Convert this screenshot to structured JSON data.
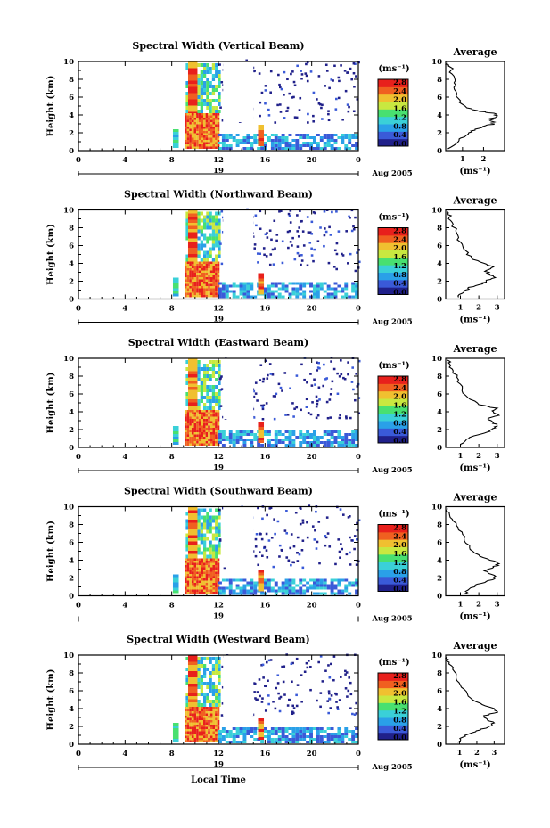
{
  "chart_data": {
    "type": "heatmap",
    "colorbar_unit": "(ms⁻¹)",
    "colorbar_ticks": [
      "0.0",
      "0.4",
      "0.8",
      "1.2",
      "1.6",
      "2.0",
      "2.4",
      "2.8"
    ],
    "colorscale": [
      "#20208a",
      "#3a5ad8",
      "#2aa0e8",
      "#3ad0d8",
      "#48e070",
      "#c8e840",
      "#f0c030",
      "#f06020",
      "#e8201c"
    ],
    "x_ticks": [
      "0",
      "4",
      "8",
      "12",
      "16",
      "20",
      "0"
    ],
    "y_ticks": [
      "0",
      "2",
      "4",
      "6",
      "8",
      "10"
    ],
    "xlim": [
      0,
      24
    ],
    "ylim": [
      0,
      10
    ],
    "ylabel": "Height (km)",
    "date_day": "19",
    "date_label": "Aug 2005",
    "xlabel": "Local Time",
    "avg_title": "Average",
    "avg_xlabel": "(ms⁻¹)",
    "panels": [
      {
        "title": "Spectral Width (Vertical Beam)",
        "avg_ticks": [
          "1",
          "2"
        ],
        "avg_xlim": [
          0.2,
          3.0
        ],
        "avg_profile": [
          [
            0.3,
            0.2
          ],
          [
            0.8,
            1.0
          ],
          [
            0.9,
            1.4
          ],
          [
            1.3,
            2.0
          ],
          [
            1.6,
            2.4
          ],
          [
            2.1,
            2.8
          ],
          [
            2.5,
            3.0
          ],
          [
            2.3,
            3.4
          ],
          [
            2.6,
            3.8
          ],
          [
            2.5,
            4.2
          ],
          [
            1.8,
            4.4
          ],
          [
            1.2,
            4.8
          ],
          [
            0.9,
            5.6
          ],
          [
            0.7,
            6.6
          ],
          [
            0.6,
            7.6
          ],
          [
            0.5,
            8.6
          ],
          [
            0.4,
            9.4
          ],
          [
            0.3,
            9.8
          ]
        ]
      },
      {
        "title": "Spectral Width (Northward Beam)",
        "avg_ticks": [
          "1",
          "2",
          "3"
        ],
        "avg_xlim": [
          0.2,
          3.4
        ],
        "avg_profile": [
          [
            0.9,
            0.2
          ],
          [
            1.2,
            0.8
          ],
          [
            1.4,
            1.2
          ],
          [
            2.0,
            1.6
          ],
          [
            2.4,
            2.0
          ],
          [
            2.9,
            2.4
          ],
          [
            2.6,
            2.8
          ],
          [
            2.4,
            3.2
          ],
          [
            2.8,
            3.6
          ],
          [
            2.3,
            4.0
          ],
          [
            1.6,
            4.6
          ],
          [
            1.3,
            5.4
          ],
          [
            1.0,
            6.4
          ],
          [
            0.8,
            7.4
          ],
          [
            0.6,
            8.4
          ],
          [
            0.4,
            9.2
          ],
          [
            0.3,
            9.8
          ]
        ]
      },
      {
        "title": "Spectral Width (Eastward Beam)",
        "avg_ticks": [
          "1",
          "2",
          "3"
        ],
        "avg_xlim": [
          0.2,
          3.4
        ],
        "avg_profile": [
          [
            1.0,
            0.2
          ],
          [
            1.3,
            0.8
          ],
          [
            1.6,
            1.2
          ],
          [
            2.3,
            1.6
          ],
          [
            2.7,
            2.0
          ],
          [
            3.0,
            2.4
          ],
          [
            2.8,
            2.8
          ],
          [
            2.5,
            3.2
          ],
          [
            3.1,
            3.6
          ],
          [
            2.8,
            4.0
          ],
          [
            3.0,
            4.4
          ],
          [
            2.0,
            4.8
          ],
          [
            1.4,
            5.6
          ],
          [
            1.1,
            6.6
          ],
          [
            0.9,
            7.6
          ],
          [
            0.6,
            8.6
          ],
          [
            0.4,
            9.4
          ],
          [
            0.3,
            9.8
          ]
        ]
      },
      {
        "title": "Spectral Width (Southward Beam)",
        "avg_ticks": [
          "1",
          "2",
          "3"
        ],
        "avg_xlim": [
          0.2,
          3.4
        ],
        "avg_profile": [
          [
            1.2,
            0.2
          ],
          [
            1.5,
            0.8
          ],
          [
            1.8,
            1.2
          ],
          [
            2.4,
            1.6
          ],
          [
            2.9,
            2.0
          ],
          [
            2.7,
            2.4
          ],
          [
            2.3,
            2.8
          ],
          [
            2.8,
            3.2
          ],
          [
            3.1,
            3.6
          ],
          [
            2.6,
            4.0
          ],
          [
            2.0,
            4.6
          ],
          [
            1.5,
            5.4
          ],
          [
            1.2,
            6.4
          ],
          [
            0.9,
            7.4
          ],
          [
            0.6,
            8.4
          ],
          [
            0.4,
            9.2
          ],
          [
            0.3,
            9.8
          ]
        ]
      },
      {
        "title": "Spectral Width (Westward Beam)",
        "avg_ticks": [
          "1",
          "2",
          "3"
        ],
        "avg_xlim": [
          0.2,
          3.6
        ],
        "avg_profile": [
          [
            0.9,
            0.2
          ],
          [
            1.2,
            0.8
          ],
          [
            1.6,
            1.2
          ],
          [
            2.2,
            1.6
          ],
          [
            2.7,
            2.0
          ],
          [
            3.0,
            2.4
          ],
          [
            2.6,
            2.8
          ],
          [
            2.4,
            3.2
          ],
          [
            3.2,
            3.6
          ],
          [
            3.0,
            4.0
          ],
          [
            2.2,
            4.6
          ],
          [
            1.5,
            5.4
          ],
          [
            1.1,
            6.4
          ],
          [
            0.8,
            7.4
          ],
          [
            0.6,
            8.4
          ],
          [
            0.4,
            9.2
          ],
          [
            0.3,
            9.8
          ]
        ]
      }
    ]
  }
}
